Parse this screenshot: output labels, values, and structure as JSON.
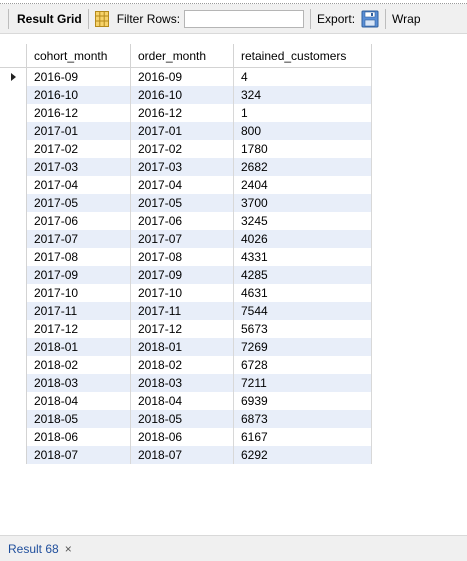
{
  "toolbar": {
    "result_grid_label": "Result Grid",
    "filter_rows_label": "Filter Rows:",
    "filter_value": "",
    "export_label": "Export:",
    "wrap_label": "Wrap"
  },
  "table": {
    "columns": [
      "cohort_month",
      "order_month",
      "retained_customers"
    ],
    "rows": [
      [
        "2016-09",
        "2016-09",
        "4"
      ],
      [
        "2016-10",
        "2016-10",
        "324"
      ],
      [
        "2016-12",
        "2016-12",
        "1"
      ],
      [
        "2017-01",
        "2017-01",
        "800"
      ],
      [
        "2017-02",
        "2017-02",
        "1780"
      ],
      [
        "2017-03",
        "2017-03",
        "2682"
      ],
      [
        "2017-04",
        "2017-04",
        "2404"
      ],
      [
        "2017-05",
        "2017-05",
        "3700"
      ],
      [
        "2017-06",
        "2017-06",
        "3245"
      ],
      [
        "2017-07",
        "2017-07",
        "4026"
      ],
      [
        "2017-08",
        "2017-08",
        "4331"
      ],
      [
        "2017-09",
        "2017-09",
        "4285"
      ],
      [
        "2017-10",
        "2017-10",
        "4631"
      ],
      [
        "2017-11",
        "2017-11",
        "7544"
      ],
      [
        "2017-12",
        "2017-12",
        "5673"
      ],
      [
        "2018-01",
        "2018-01",
        "7269"
      ],
      [
        "2018-02",
        "2018-02",
        "6728"
      ],
      [
        "2018-03",
        "2018-03",
        "7211"
      ],
      [
        "2018-04",
        "2018-04",
        "6939"
      ],
      [
        "2018-05",
        "2018-05",
        "6873"
      ],
      [
        "2018-06",
        "2018-06",
        "6167"
      ],
      [
        "2018-07",
        "2018-07",
        "6292"
      ]
    ]
  },
  "bottom": {
    "result_tab_label": "Result 68",
    "close_glyph": "×"
  },
  "colors": {
    "alt_row": "#e8eef9",
    "toolbar_bg": "#f0f0f0",
    "tab_text": "#1f4e9c"
  }
}
